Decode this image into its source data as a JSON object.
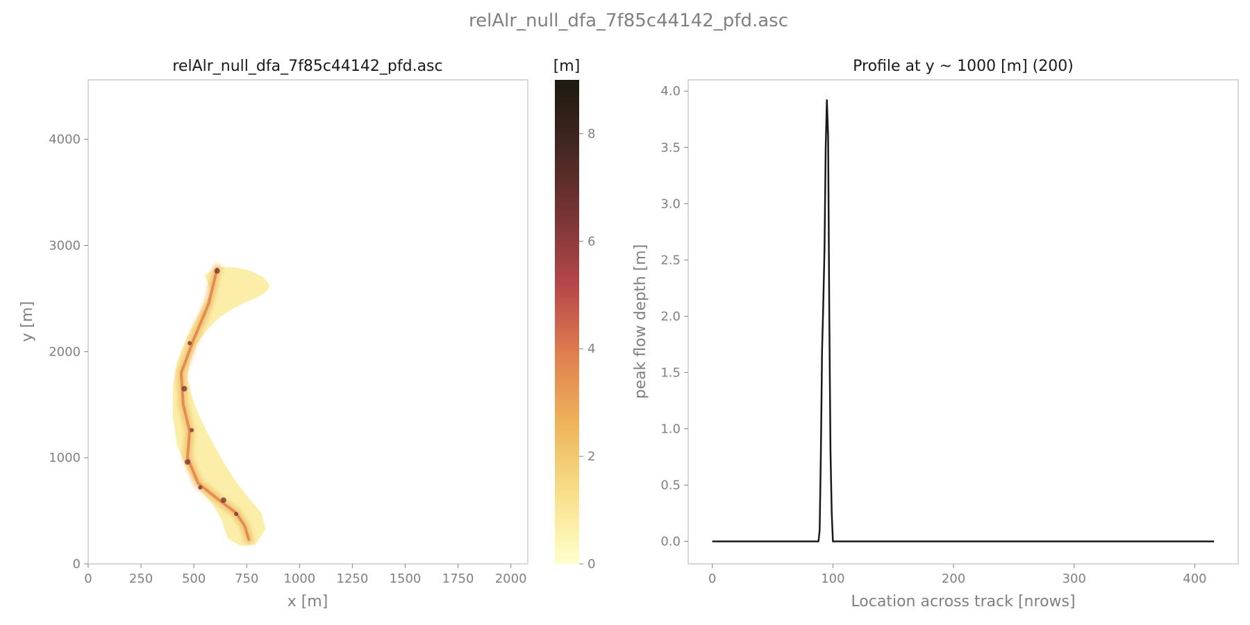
{
  "figure": {
    "suptitle": "relAlr_null_dfa_7f85c44142_pfd.asc"
  },
  "colors": {
    "axis_text": "#808080",
    "spine": "#cccccc",
    "title": "#1a1a1a",
    "profile_line": "#1a1a1a",
    "colormap": [
      "#ffffcc",
      "#f8e08a",
      "#eeb55b",
      "#e0804f",
      "#b8484a",
      "#7a3535",
      "#452722",
      "#1c1a0e"
    ]
  },
  "chart_data": [
    {
      "type": "heatmap",
      "title": "relAlr_null_dfa_7f85c44142_pfd.asc",
      "xlabel": "x [m]",
      "ylabel": "y [m]",
      "xlim": [
        0,
        2080
      ],
      "ylim": [
        0,
        4560
      ],
      "xticks": [
        0,
        250,
        500,
        750,
        1000,
        1250,
        1500,
        1750,
        2000
      ],
      "yticks": [
        0,
        1000,
        2000,
        3000,
        4000
      ],
      "grid": false,
      "colorbar": {
        "label": "[m]",
        "range": [
          0,
          9
        ],
        "ticks": [
          0,
          2,
          4,
          6,
          8
        ]
      },
      "deposit_outline": [
        [
          610,
          2800
        ],
        [
          700,
          2790
        ],
        [
          770,
          2760
        ],
        [
          830,
          2700
        ],
        [
          860,
          2620
        ],
        [
          840,
          2560
        ],
        [
          800,
          2510
        ],
        [
          740,
          2460
        ],
        [
          680,
          2400
        ],
        [
          620,
          2320
        ],
        [
          560,
          2200
        ],
        [
          510,
          2060
        ],
        [
          480,
          1900
        ],
        [
          470,
          1750
        ],
        [
          490,
          1580
        ],
        [
          520,
          1420
        ],
        [
          560,
          1250
        ],
        [
          600,
          1100
        ],
        [
          640,
          960
        ],
        [
          690,
          800
        ],
        [
          760,
          620
        ],
        [
          820,
          480
        ],
        [
          840,
          330
        ],
        [
          790,
          180
        ],
        [
          720,
          170
        ],
        [
          660,
          240
        ],
        [
          630,
          420
        ],
        [
          590,
          560
        ],
        [
          520,
          720
        ],
        [
          460,
          920
        ],
        [
          420,
          1120
        ],
        [
          400,
          1400
        ],
        [
          400,
          1660
        ],
        [
          420,
          1900
        ],
        [
          470,
          2150
        ],
        [
          530,
          2380
        ],
        [
          580,
          2560
        ],
        [
          560,
          2680
        ],
        [
          550,
          2720
        ]
      ],
      "thalweg": [
        [
          610,
          2780
        ],
        [
          570,
          2450
        ],
        [
          500,
          2120
        ],
        [
          440,
          1800
        ],
        [
          450,
          1500
        ],
        [
          480,
          1250
        ],
        [
          470,
          1000
        ],
        [
          520,
          760
        ],
        [
          620,
          600
        ],
        [
          700,
          480
        ],
        [
          740,
          360
        ],
        [
          760,
          230
        ]
      ],
      "peak_locations": [
        [
          610,
          2760
        ],
        [
          480,
          2080
        ],
        [
          455,
          1650
        ],
        [
          490,
          1260
        ],
        [
          470,
          960
        ],
        [
          530,
          720
        ],
        [
          640,
          600
        ],
        [
          700,
          470
        ]
      ]
    },
    {
      "type": "line",
      "title": "Profile at y ~ 1000 [m] (200)",
      "xlabel": "Location across track [nrows]",
      "ylabel": "peak flow depth [m]",
      "xlim": [
        -20,
        436
      ],
      "ylim": [
        -0.2,
        4.1
      ],
      "xticks": [
        0,
        100,
        200,
        300,
        400
      ],
      "yticks": [
        0.0,
        0.5,
        1.0,
        1.5,
        2.0,
        2.5,
        3.0,
        3.5,
        4.0
      ],
      "grid": false,
      "series": [
        {
          "x": [
            0,
            88,
            89,
            90,
            91,
            92,
            93,
            94,
            95,
            96,
            97,
            98,
            99,
            100,
            416
          ],
          "y": [
            0.0,
            0.0,
            0.1,
            0.8,
            1.7,
            2.1,
            2.6,
            3.5,
            3.92,
            3.6,
            2.0,
            0.8,
            0.25,
            0.0,
            0.0
          ]
        }
      ]
    }
  ]
}
